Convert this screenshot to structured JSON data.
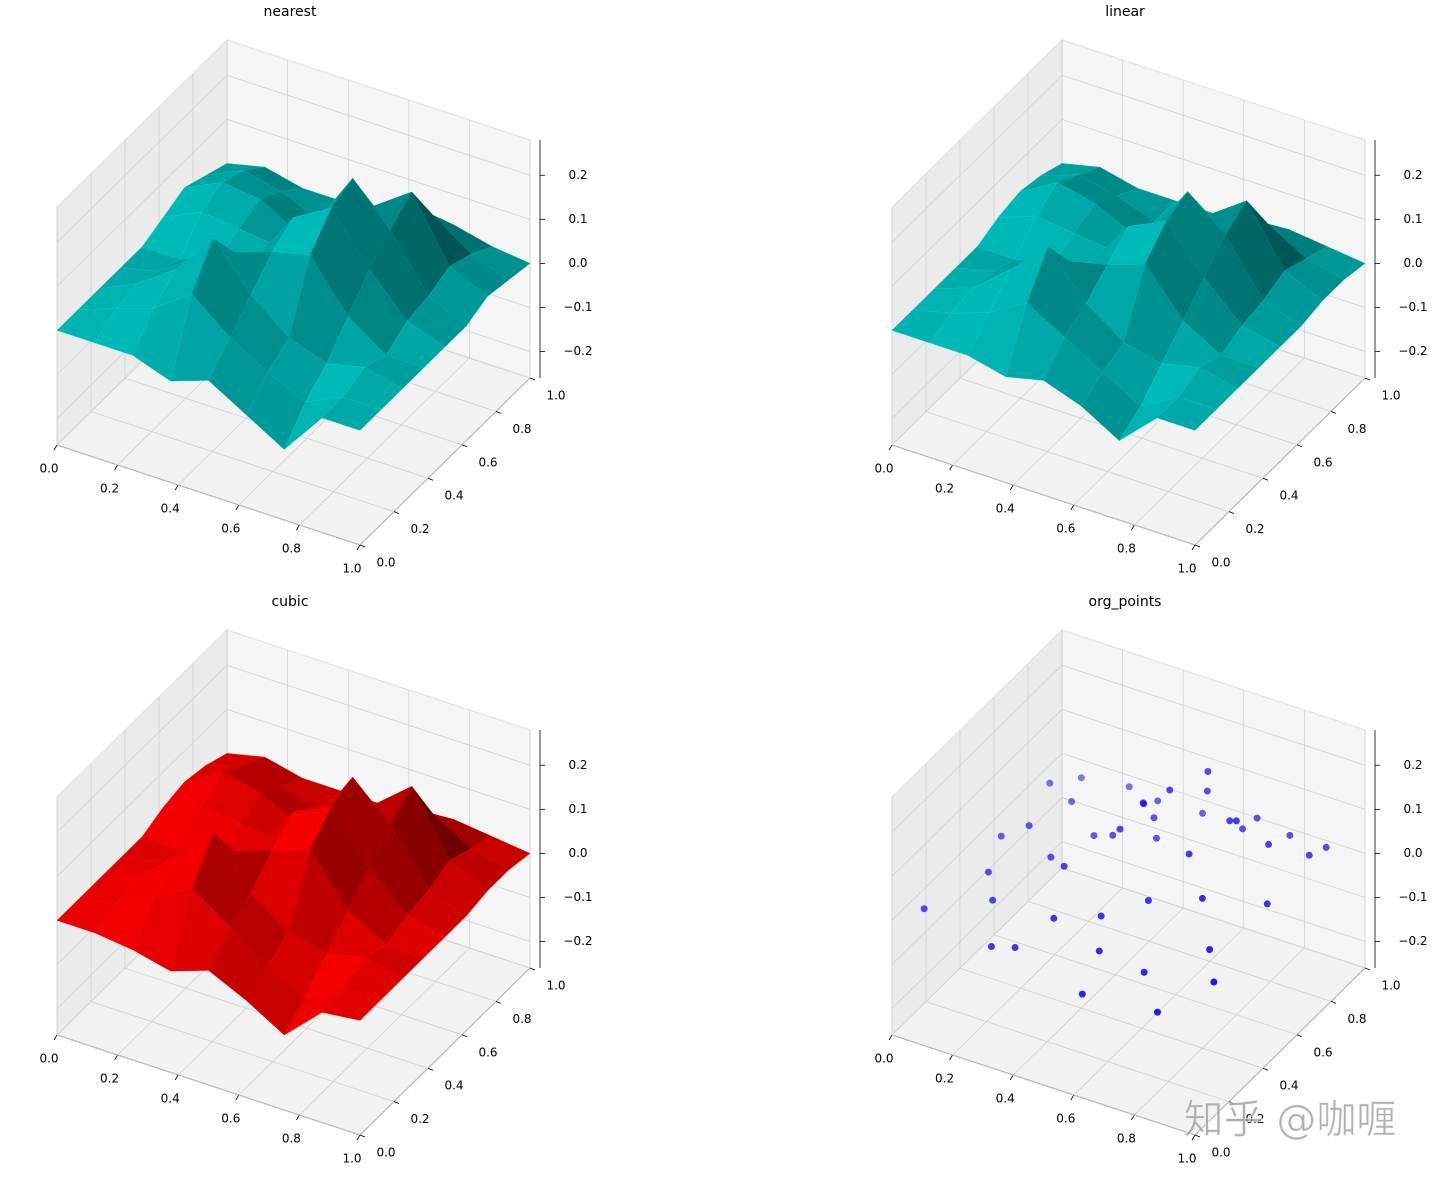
{
  "chart_data": [
    {
      "type": "surface",
      "title": "nearest",
      "color": "#00a9a9",
      "x": [
        0,
        0.125,
        0.25,
        0.375,
        0.5,
        0.625,
        0.75,
        0.875,
        1
      ],
      "y": [
        0,
        0.125,
        0.25,
        0.375,
        0.5,
        0.625,
        0.75,
        0.875,
        1
      ],
      "z": [
        [
          0,
          0,
          0,
          -0.03,
          0,
          -0.05,
          -0.1,
          0,
          0
        ],
        [
          0,
          0.03,
          0.06,
          0.12,
          0.05,
          0,
          -0.04,
          0,
          0
        ],
        [
          0,
          0.04,
          0.1,
          0.2,
          0.1,
          0.03,
          0,
          0.02,
          0
        ],
        [
          0,
          0.02,
          0.08,
          0.12,
          0.15,
          0.17,
          0.06,
          0,
          0
        ],
        [
          0,
          0,
          0.03,
          0.06,
          0.18,
          0.23,
          0.12,
          0.03,
          0
        ],
        [
          0.02,
          0.06,
          0.05,
          0.04,
          0.12,
          0.25,
          0.16,
          0.04,
          0
        ],
        [
          0.04,
          0.08,
          0.07,
          0.02,
          0.06,
          0.14,
          0.2,
          0.06,
          0.02
        ],
        [
          0.02,
          0.06,
          0.04,
          0,
          0.03,
          0.06,
          0.1,
          0.04,
          0.01
        ],
        [
          0,
          0.02,
          0,
          0,
          0,
          0.02,
          0.03,
          0.01,
          0
        ]
      ],
      "xlim": [
        0,
        1
      ],
      "ylim": [
        0,
        1
      ],
      "zlim": [
        -0.26,
        0.28
      ],
      "xticks": [
        {
          "value": 0,
          "label": "0.0"
        },
        0.2,
        0.4,
        0.6,
        0.8,
        {
          "value": 1,
          "label": "1.0"
        }
      ],
      "yticks": [
        {
          "value": 0,
          "label": "0.0"
        },
        0.2,
        0.4,
        0.6,
        0.8,
        {
          "value": 1,
          "label": "1.0"
        }
      ],
      "zticks": [
        {
          "value": -0.2,
          "label": "−0.2"
        },
        {
          "value": -0.1,
          "label": "−0.1"
        },
        {
          "value": 0,
          "label": "0.0"
        },
        0.1,
        0.2
      ],
      "grid": true
    },
    {
      "type": "surface",
      "title": "linear",
      "color": "#00a9a9",
      "x": [
        0,
        0.125,
        0.25,
        0.375,
        0.5,
        0.625,
        0.75,
        0.875,
        1
      ],
      "y": [
        0,
        0.125,
        0.25,
        0.375,
        0.5,
        0.625,
        0.75,
        0.875,
        1
      ],
      "z": [
        [
          0,
          0,
          0,
          -0.02,
          0,
          -0.03,
          -0.08,
          0,
          0
        ],
        [
          0,
          0.02,
          0.05,
          0.1,
          0.05,
          0,
          -0.05,
          0,
          0
        ],
        [
          0,
          0.03,
          0.1,
          0.18,
          0.08,
          0.02,
          0,
          0.02,
          0
        ],
        [
          0,
          0.02,
          0.06,
          0.1,
          0.12,
          0.15,
          0.05,
          0,
          0
        ],
        [
          0,
          0,
          0.02,
          0.05,
          0.16,
          0.2,
          0.1,
          0.02,
          0
        ],
        [
          0.02,
          0.05,
          0.04,
          0.03,
          0.1,
          0.22,
          0.15,
          0.03,
          0
        ],
        [
          0.03,
          0.08,
          0.06,
          0.02,
          0.05,
          0.12,
          0.18,
          0.05,
          0.01
        ],
        [
          0.02,
          0.05,
          0.03,
          0,
          0.02,
          0.05,
          0.08,
          0.03,
          0.01
        ],
        [
          0,
          0.02,
          0,
          0,
          0,
          0.01,
          0.02,
          0.01,
          0
        ]
      ],
      "xlim": [
        0,
        1
      ],
      "ylim": [
        0,
        1
      ],
      "zlim": [
        -0.26,
        0.28
      ],
      "xticks": [
        {
          "value": 0,
          "label": "0.0"
        },
        0.2,
        0.4,
        0.6,
        0.8,
        {
          "value": 1,
          "label": "1.0"
        }
      ],
      "yticks": [
        {
          "value": 0,
          "label": "0.0"
        },
        0.2,
        0.4,
        0.6,
        0.8,
        {
          "value": 1,
          "label": "1.0"
        }
      ],
      "zticks": [
        {
          "value": -0.2,
          "label": "−0.2"
        },
        {
          "value": -0.1,
          "label": "−0.1"
        },
        {
          "value": 0,
          "label": "0.0"
        },
        0.1,
        0.2
      ],
      "grid": true
    },
    {
      "type": "surface",
      "title": "cubic",
      "color": "#e00000",
      "x": [
        0,
        0.125,
        0.25,
        0.375,
        0.5,
        0.625,
        0.75,
        0.875,
        1
      ],
      "y": [
        0,
        0.125,
        0.25,
        0.375,
        0.5,
        0.625,
        0.75,
        0.875,
        1
      ],
      "z": [
        [
          0,
          0,
          -0.01,
          -0.03,
          0,
          -0.04,
          -0.09,
          -0.01,
          0
        ],
        [
          0,
          0.02,
          0.06,
          0.11,
          0.05,
          -0.01,
          -0.05,
          0,
          0
        ],
        [
          0,
          0.03,
          0.11,
          0.19,
          0.08,
          0.02,
          0,
          0.02,
          0
        ],
        [
          0,
          0.02,
          0.06,
          0.1,
          0.13,
          0.16,
          0.05,
          0,
          0
        ],
        [
          0,
          0,
          0.02,
          0.05,
          0.17,
          0.21,
          0.1,
          0.02,
          0
        ],
        [
          0.02,
          0.05,
          0.04,
          0.03,
          0.1,
          0.23,
          0.15,
          0.03,
          0
        ],
        [
          0.03,
          0.08,
          0.06,
          0.02,
          0.05,
          0.12,
          0.19,
          0.05,
          0.01
        ],
        [
          0.02,
          0.05,
          0.03,
          0,
          0.02,
          0.05,
          0.08,
          0.03,
          0.01
        ],
        [
          0,
          0.02,
          0,
          0,
          0,
          0.01,
          0.02,
          0.01,
          0
        ]
      ],
      "xlim": [
        0,
        1
      ],
      "ylim": [
        0,
        1
      ],
      "zlim": [
        -0.26,
        0.28
      ],
      "xticks": [
        {
          "value": 0,
          "label": "0.0"
        },
        0.2,
        0.4,
        0.6,
        0.8,
        {
          "value": 1,
          "label": "1.0"
        }
      ],
      "yticks": [
        {
          "value": 0,
          "label": "0.0"
        },
        0.2,
        0.4,
        0.6,
        0.8,
        {
          "value": 1,
          "label": "1.0"
        }
      ],
      "zticks": [
        {
          "value": -0.2,
          "label": "−0.2"
        },
        {
          "value": -0.1,
          "label": "−0.1"
        },
        {
          "value": 0,
          "label": "0.0"
        },
        0.1,
        0.2
      ],
      "grid": true
    },
    {
      "type": "scatter3d",
      "title": "org_points",
      "color": "#0000ee",
      "x": [
        0.05,
        0.08,
        0.12,
        0.15,
        0.2,
        0.22,
        0.25,
        0.3,
        0.33,
        0.35,
        0.38,
        0.4,
        0.42,
        0.45,
        0.48,
        0.5,
        0.52,
        0.55,
        0.58,
        0.6,
        0.62,
        0.65,
        0.68,
        0.7,
        0.72,
        0.75,
        0.78,
        0.8,
        0.82,
        0.85,
        0.88,
        0.9,
        0.93,
        0.95,
        0.1,
        0.3,
        0.5,
        0.7,
        0.9,
        0.2,
        0.4,
        0.6,
        0.8,
        0.55,
        0.65
      ],
      "y": [
        0.1,
        0.5,
        0.9,
        0.3,
        0.7,
        0.2,
        0.95,
        0.4,
        0.6,
        0.1,
        0.8,
        0.3,
        0.55,
        0.15,
        0.7,
        0.45,
        0.9,
        0.25,
        0.6,
        0.05,
        0.75,
        0.35,
        0.85,
        0.5,
        0.2,
        0.65,
        0.95,
        0.4,
        0.1,
        0.7,
        0.3,
        0.85,
        0.55,
        0.2,
        0.75,
        0.05,
        0.65,
        0.9,
        0.95,
        0.45,
        0.85,
        0.15,
        0.6,
        0.5,
        0.7
      ],
      "z": [
        0,
        0.02,
        0.01,
        0.03,
        0.05,
        0.02,
        0,
        0.06,
        0.04,
        -0.02,
        0.05,
        0.1,
        0.08,
        0.05,
        0.03,
        0.15,
        0.02,
        0.04,
        0.2,
        -0.05,
        0.15,
        0.06,
        0.04,
        0.12,
        -0.03,
        0.15,
        0.01,
        0.08,
        -0.06,
        0.1,
        0.02,
        0.03,
        0.04,
        0,
        0.05,
        -0.01,
        0.1,
        0.05,
        0.01,
        0.09,
        0.04,
        0.01,
        0.18,
        0.2,
        0.22
      ],
      "xlim": [
        0,
        1
      ],
      "ylim": [
        0,
        1
      ],
      "zlim": [
        -0.26,
        0.28
      ],
      "xticks": [
        {
          "value": 0,
          "label": "0.0"
        },
        0.2,
        0.4,
        0.6,
        0.8,
        {
          "value": 1,
          "label": "1.0"
        }
      ],
      "yticks": [
        {
          "value": 0,
          "label": "0.0"
        },
        0.2,
        0.4,
        0.6,
        0.8,
        {
          "value": 1,
          "label": "1.0"
        }
      ],
      "zticks": [
        {
          "value": -0.2,
          "label": "−0.2"
        },
        {
          "value": -0.1,
          "label": "−0.1"
        },
        {
          "value": 0,
          "label": "0.0"
        },
        0.1,
        0.2
      ],
      "grid": true
    }
  ],
  "watermark": "知乎 @咖喱"
}
